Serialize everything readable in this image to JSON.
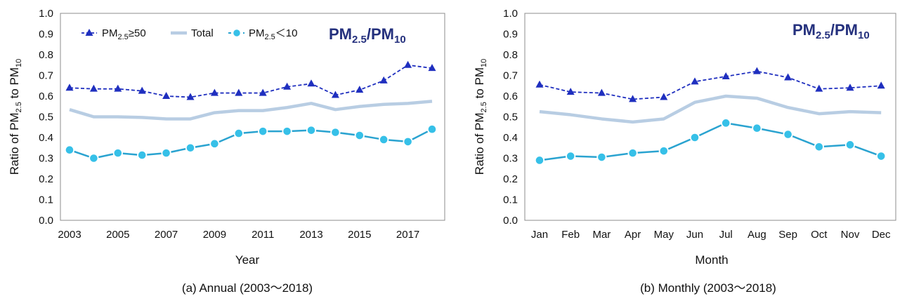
{
  "colors": {
    "high": "#1f2fbf",
    "total": "#b8cde3",
    "low_line": "#2aa3d0",
    "low_marker": "#36c0e8",
    "tag": "#24307d"
  },
  "chart_data": [
    {
      "type": "line",
      "title": "PM2.5/PM10",
      "tag": {
        "main": "PM",
        "sub1": "2.5",
        "slash": "/",
        "main2": "PM",
        "sub2": "10"
      },
      "caption": "(a) Annual (2003～2018)",
      "xlabel": "Year",
      "ylabel": {
        "pre": "Ratio of PM",
        "sub1": "2.5",
        "mid": " to PM",
        "sub2": "10"
      },
      "ylim": [
        0,
        1
      ],
      "yticks": [
        "0.0",
        "0.1",
        "0.2",
        "0.3",
        "0.4",
        "0.5",
        "0.6",
        "0.7",
        "0.8",
        "0.9",
        "1.0"
      ],
      "categories": [
        2003,
        2004,
        2005,
        2006,
        2007,
        2008,
        2009,
        2010,
        2011,
        2012,
        2013,
        2014,
        2015,
        2016,
        2017,
        2018
      ],
      "xtick_labels": [
        "2003",
        "2005",
        "2007",
        "2009",
        "2011",
        "2013",
        "2015",
        "2017"
      ],
      "xtick_every": 2,
      "legend": {
        "high": {
          "pre": "PM",
          "sub": "2.5",
          "post": "≥50"
        },
        "total": {
          "label": "Total"
        },
        "low": {
          "pre": "PM",
          "sub": "2.5",
          "post": "＜10"
        }
      },
      "series": [
        {
          "key": "high",
          "name": "PM2.5≥50",
          "values": [
            0.64,
            0.635,
            0.635,
            0.625,
            0.6,
            0.595,
            0.615,
            0.615,
            0.615,
            0.645,
            0.66,
            0.605,
            0.63,
            0.675,
            0.75,
            0.735
          ]
        },
        {
          "key": "total",
          "name": "Total",
          "values": [
            0.535,
            0.5,
            0.5,
            0.497,
            0.49,
            0.49,
            0.52,
            0.53,
            0.53,
            0.545,
            0.565,
            0.535,
            0.55,
            0.56,
            0.565,
            0.575
          ]
        },
        {
          "key": "low",
          "name": "PM2.5<10",
          "values": [
            0.34,
            0.3,
            0.325,
            0.315,
            0.325,
            0.35,
            0.37,
            0.42,
            0.43,
            0.43,
            0.435,
            0.425,
            0.41,
            0.39,
            0.38,
            0.44
          ]
        }
      ]
    },
    {
      "type": "line",
      "title": "PM2.5/PM10",
      "tag": {
        "main": "PM",
        "sub1": "2.5",
        "slash": "/",
        "main2": "PM",
        "sub2": "10"
      },
      "caption": "(b) Monthly (2003～2018)",
      "xlabel": "Month",
      "ylabel": {
        "pre": "Ratio of PM",
        "sub1": "2.5",
        "mid": " to PM",
        "sub2": "10"
      },
      "ylim": [
        0,
        1
      ],
      "yticks": [
        "0.0",
        "0.1",
        "0.2",
        "0.3",
        "0.4",
        "0.5",
        "0.6",
        "0.7",
        "0.8",
        "0.9",
        "1.0"
      ],
      "categories": [
        "Jan",
        "Feb",
        "Mar",
        "Apr",
        "May",
        "Jun",
        "Jul",
        "Aug",
        "Sep",
        "Oct",
        "Nov",
        "Dec"
      ],
      "xtick_labels": [
        "Jan",
        "Feb",
        "Mar",
        "Apr",
        "May",
        "Jun",
        "Jul",
        "Aug",
        "Sep",
        "Oct",
        "Nov",
        "Dec"
      ],
      "xtick_every": 1,
      "series": [
        {
          "key": "high",
          "name": "PM2.5≥50",
          "values": [
            0.655,
            0.62,
            0.615,
            0.585,
            0.595,
            0.67,
            0.695,
            0.72,
            0.69,
            0.635,
            0.64,
            0.65
          ]
        },
        {
          "key": "total",
          "name": "Total",
          "values": [
            0.525,
            0.51,
            0.49,
            0.475,
            0.49,
            0.57,
            0.6,
            0.59,
            0.545,
            0.515,
            0.525,
            0.52
          ]
        },
        {
          "key": "low",
          "name": "PM2.5<10",
          "values": [
            0.29,
            0.31,
            0.305,
            0.325,
            0.335,
            0.4,
            0.47,
            0.445,
            0.415,
            0.355,
            0.365,
            0.31
          ]
        }
      ]
    }
  ]
}
